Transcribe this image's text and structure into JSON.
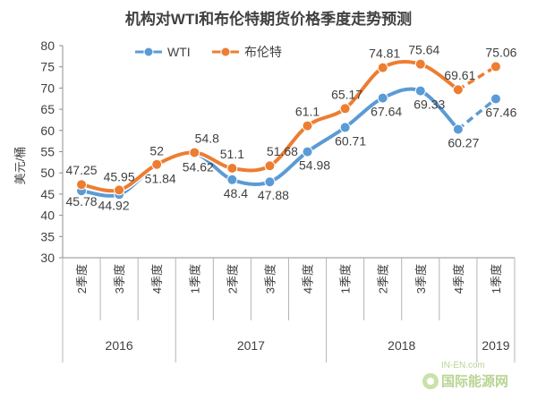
{
  "chart_data": {
    "type": "line",
    "title": "机构对WTI和布伦特期货价格季度走势预测",
    "ylabel": "美元/桶",
    "xlabel": "",
    "ylim": [
      30,
      80
    ],
    "yticks": [
      30,
      35,
      40,
      45,
      50,
      55,
      60,
      65,
      70,
      75,
      80
    ],
    "grid": false,
    "legend_position": "top",
    "categories": [
      "2季度",
      "3季度",
      "4季度",
      "1季度",
      "2季度",
      "3季度",
      "4季度",
      "1季度",
      "2季度",
      "3季度",
      "4季度",
      "1季度"
    ],
    "year_groups": [
      {
        "label": "2016",
        "count": 3
      },
      {
        "label": "2017",
        "count": 4
      },
      {
        "label": "2018",
        "count": 4
      },
      {
        "label": "2019",
        "count": 1
      }
    ],
    "series": [
      {
        "name": "WTI",
        "color": "#5B9BD5",
        "values": [
          45.78,
          44.92,
          51.84,
          54.62,
          48.4,
          47.88,
          54.98,
          60.71,
          67.64,
          69.33,
          60.27,
          67.46
        ]
      },
      {
        "name": "布伦特",
        "color": "#ED7D31",
        "values": [
          47.25,
          45.95,
          52,
          54.8,
          51.1,
          51.68,
          61.1,
          65.17,
          74.81,
          75.64,
          69.61,
          75.06
        ]
      }
    ]
  },
  "watermark": {
    "small_text": "IN-EN.com",
    "big_text": "国际能源网"
  }
}
